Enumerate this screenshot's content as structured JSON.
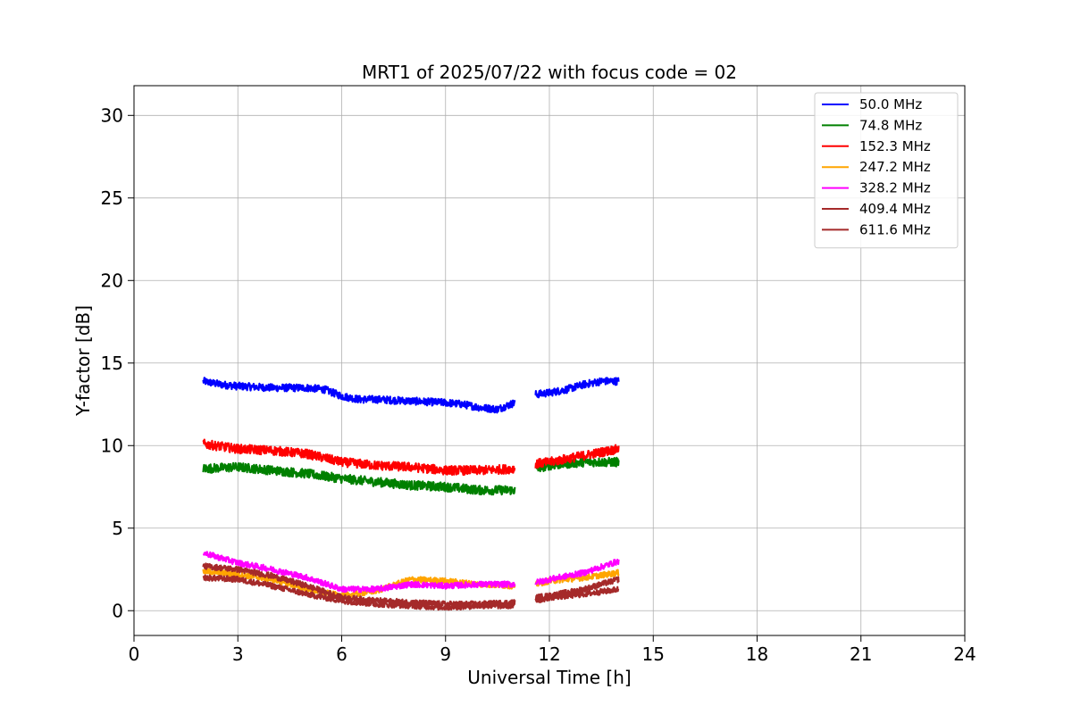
{
  "chart_data": {
    "type": "line",
    "title": "MRT1 of 2025/07/22 with focus code = 02",
    "xlabel": "Universal Time [h]",
    "ylabel": "Y-factor [dB]",
    "xlim": [
      0,
      24
    ],
    "ylim": [
      -1.5,
      31.8
    ],
    "xticks": [
      0,
      3,
      6,
      9,
      12,
      15,
      18,
      21,
      24
    ],
    "yticks": [
      0,
      5,
      10,
      15,
      20,
      25,
      30
    ],
    "grid": true,
    "legend_position": "top-right",
    "series": [
      {
        "name": "  50.0 MHz",
        "color": "#0000ff",
        "x": [
          2.0,
          2.5,
          3.0,
          4.0,
          5.0,
          5.5,
          6.0,
          6.5,
          7.0,
          8.0,
          9.0,
          9.5,
          10.0,
          10.5,
          11.0
        ],
        "y": [
          13.9,
          13.7,
          13.6,
          13.5,
          13.5,
          13.4,
          13.0,
          12.8,
          12.8,
          12.7,
          12.6,
          12.5,
          12.3,
          12.2,
          12.6
        ],
        "x2": [
          11.6,
          12.0,
          12.5,
          13.0,
          13.5,
          14.0
        ],
        "y2": [
          13.1,
          13.2,
          13.4,
          13.7,
          13.9,
          13.9
        ]
      },
      {
        "name": "  74.8 MHz",
        "color": "#008000",
        "x": [
          2.0,
          3.0,
          4.0,
          5.0,
          6.0,
          7.0,
          8.0,
          9.0,
          10.0,
          11.0
        ],
        "y": [
          8.6,
          8.7,
          8.5,
          8.3,
          8.0,
          7.8,
          7.6,
          7.5,
          7.3,
          7.3
        ],
        "x2": [
          11.6,
          12.0,
          13.0,
          14.0
        ],
        "y2": [
          8.6,
          8.8,
          9.0,
          9.0
        ]
      },
      {
        "name": "  152.3 MHz",
        "color": "#ff0000",
        "x": [
          2.0,
          3.0,
          4.0,
          5.0,
          6.0,
          7.0,
          8.0,
          9.0,
          10.0,
          11.0
        ],
        "y": [
          10.1,
          9.8,
          9.7,
          9.5,
          9.0,
          8.8,
          8.7,
          8.5,
          8.5,
          8.6
        ],
        "x2": [
          11.6,
          12.0,
          13.0,
          14.0
        ],
        "y2": [
          8.9,
          9.0,
          9.4,
          9.8
        ]
      },
      {
        "name": "  247.2 MHz",
        "color": "#ffa500",
        "x": [
          2.0,
          3.0,
          4.0,
          5.0,
          6.0,
          7.0,
          8.0,
          9.0,
          10.0,
          11.0
        ],
        "y": [
          2.4,
          2.2,
          1.9,
          1.3,
          0.9,
          1.2,
          1.9,
          1.8,
          1.6,
          1.5
        ],
        "x2": [
          11.6,
          12.0,
          13.0,
          14.0
        ],
        "y2": [
          1.6,
          1.8,
          2.0,
          2.3
        ]
      },
      {
        "name": "  328.2 MHz",
        "color": "#ff00ff",
        "x": [
          2.0,
          3.0,
          4.0,
          5.0,
          6.0,
          7.0,
          8.0,
          9.0,
          10.0,
          11.0
        ],
        "y": [
          3.5,
          2.9,
          2.5,
          2.0,
          1.3,
          1.3,
          1.6,
          1.5,
          1.6,
          1.6
        ],
        "x2": [
          11.6,
          12.0,
          13.0,
          14.0
        ],
        "y2": [
          1.7,
          1.9,
          2.3,
          3.0
        ]
      },
      {
        "name": "  409.4 MHz",
        "color": "#a52a2a",
        "x": [
          2.0,
          3.0,
          4.0,
          5.0,
          6.0,
          7.0,
          8.0,
          9.0,
          10.0,
          11.0
        ],
        "y": [
          2.7,
          2.5,
          2.1,
          1.5,
          0.8,
          0.6,
          0.5,
          0.4,
          0.4,
          0.5
        ],
        "x2": [
          11.6,
          12.0,
          13.0,
          14.0
        ],
        "y2": [
          0.8,
          0.9,
          1.3,
          1.9
        ]
      },
      {
        "name": "  611.6 MHz",
        "color": "#a52a2a",
        "x": [
          2.0,
          3.0,
          4.0,
          5.0,
          6.0,
          7.0,
          8.0,
          9.0,
          10.0,
          11.0
        ],
        "y": [
          2.0,
          1.9,
          1.5,
          1.0,
          0.6,
          0.4,
          0.3,
          0.2,
          0.3,
          0.3
        ],
        "x2": [
          11.6,
          12.0,
          13.0,
          14.0
        ],
        "y2": [
          0.6,
          0.8,
          1.0,
          1.3
        ]
      }
    ]
  }
}
